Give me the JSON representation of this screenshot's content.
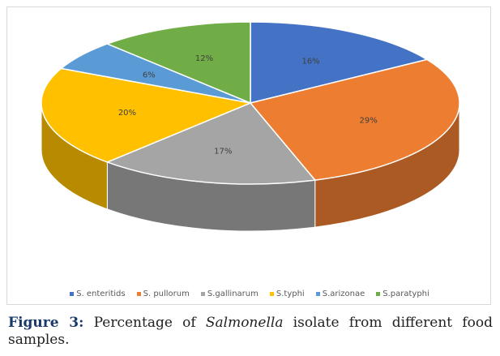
{
  "chart_data": {
    "type": "pie",
    "style": "3d",
    "labels": [
      "S. enteritids",
      "S. pullorum",
      "S.gallinarum",
      "S.typhi",
      "S.arizonae",
      "S.paratyphi"
    ],
    "values": [
      16,
      29,
      17,
      20,
      6,
      12
    ],
    "value_labels": [
      "16%",
      "29%",
      "17%",
      "20%",
      "6%",
      "12%"
    ],
    "colors": [
      "#4472c4",
      "#ed7d31",
      "#a5a5a5",
      "#ffc000",
      "#5b9bd5",
      "#70ad47"
    ],
    "legend_position": "bottom"
  },
  "caption": {
    "label": "Figure 3:",
    "text_before": " Percentage of ",
    "italic": "Salmonella",
    "text_after": " isolate from different food samples."
  }
}
